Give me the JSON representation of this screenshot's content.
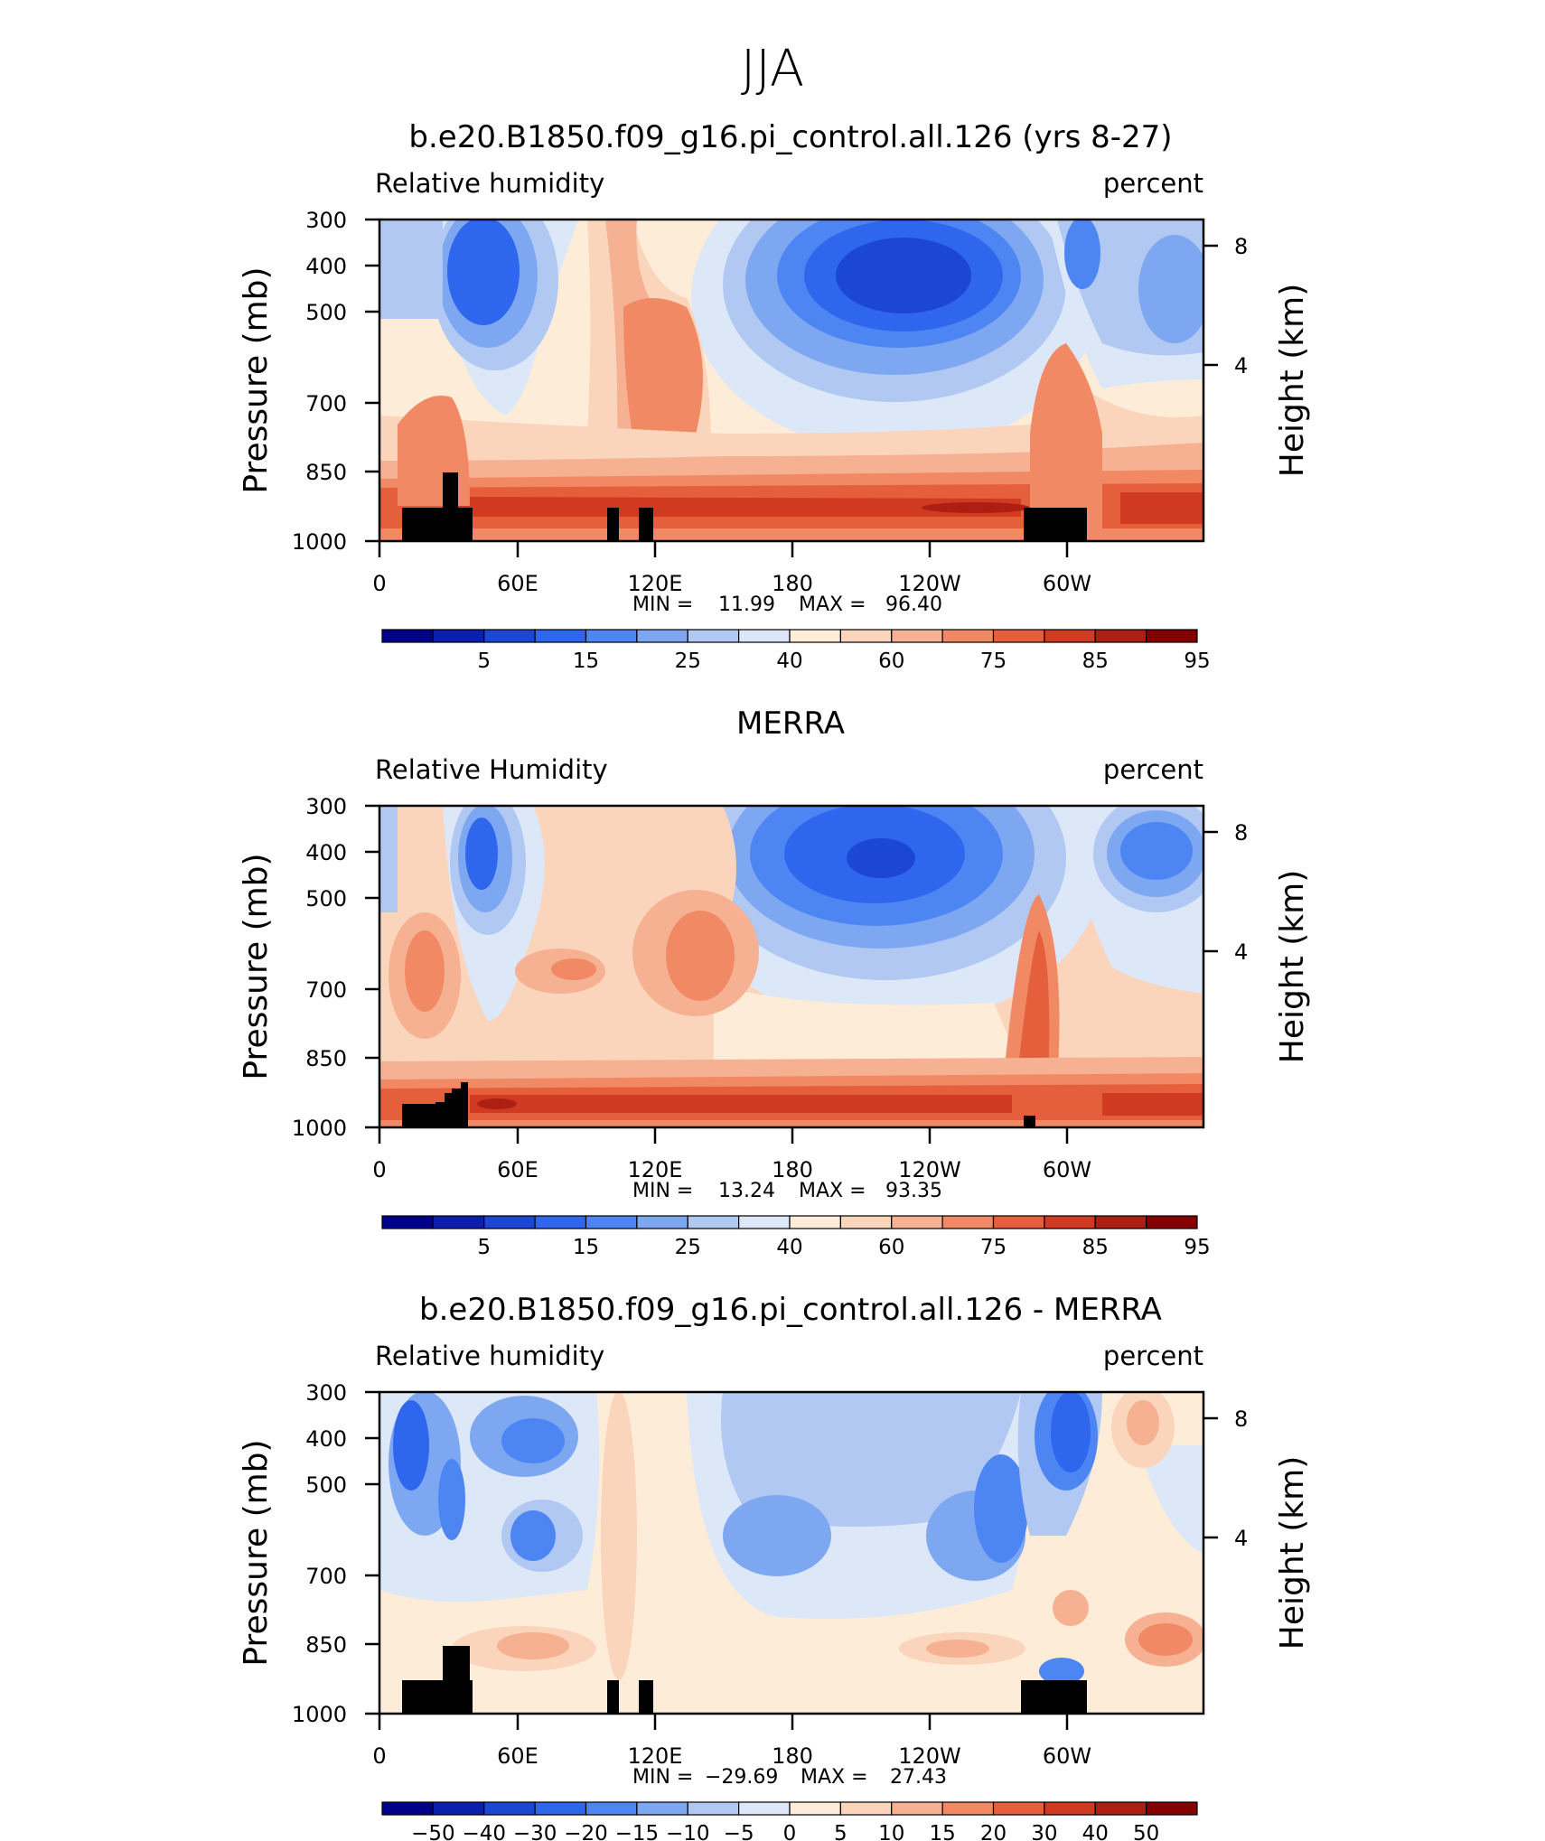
{
  "figure_title": "JJA",
  "colors": {
    "rh": [
      "#00008b",
      "#0a1fb0",
      "#1c47d4",
      "#2f66ee",
      "#4d86f2",
      "#7ea7f2",
      "#b0c8f2",
      "#dce7f7",
      "#fdecd8",
      "#fbd4bc",
      "#f6b092",
      "#f18964",
      "#e55f3d",
      "#cf3a20",
      "#ad1f12",
      "#850000"
    ],
    "diff": [
      "#00008b",
      "#0a1fb0",
      "#1c47d4",
      "#2f66ee",
      "#4d86f2",
      "#7ea7f2",
      "#b0c8f2",
      "#dce7f7",
      "#fdecd8",
      "#fbd4bc",
      "#f6b092",
      "#f18964",
      "#e55f3d",
      "#cf3a20",
      "#ad1f12",
      "#850000"
    ]
  },
  "chart_data": [
    {
      "type": "heatmap",
      "title": "b.e20.B1850.f09_g16.pi_control.all.126 (yrs 8-27)",
      "left_label": "Relative  humidity",
      "right_label": "percent",
      "ylabel": "Pressure  (mb)",
      "ylabel_right": "Height  (km)",
      "x_ticks": [
        "0",
        "60E",
        "120E",
        "180",
        "120W",
        "60W"
      ],
      "y_ticks": [
        "300",
        "400",
        "500",
        "700",
        "850",
        "1000"
      ],
      "y_right_ticks": [
        "8",
        "4"
      ],
      "stats": {
        "min_label": "MIN =",
        "min": "11.99",
        "max_label": "MAX =",
        "max": "96.40"
      },
      "colorbar_labels": [
        "5",
        "15",
        "25",
        "40",
        "60",
        "75",
        "85",
        "95"
      ],
      "xlim": [
        0,
        360
      ],
      "ylim": [
        1000,
        300
      ]
    },
    {
      "type": "heatmap",
      "title": "MERRA",
      "left_label": "Relative  Humidity",
      "right_label": "percent",
      "ylabel": "Pressure  (mb)",
      "ylabel_right": "Height  (km)",
      "x_ticks": [
        "0",
        "60E",
        "120E",
        "180",
        "120W",
        "60W"
      ],
      "y_ticks": [
        "300",
        "400",
        "500",
        "700",
        "850",
        "1000"
      ],
      "y_right_ticks": [
        "8",
        "4"
      ],
      "stats": {
        "min_label": "MIN =",
        "min": "13.24",
        "max_label": "MAX =",
        "max": "93.35"
      },
      "colorbar_labels": [
        "5",
        "15",
        "25",
        "40",
        "60",
        "75",
        "85",
        "95"
      ],
      "xlim": [
        0,
        360
      ],
      "ylim": [
        1000,
        300
      ]
    },
    {
      "type": "heatmap",
      "title": "b.e20.B1850.f09_g16.pi_control.all.126 - MERRA",
      "left_label": "Relative  humidity",
      "right_label": "percent",
      "ylabel": "Pressure  (mb)",
      "ylabel_right": "Height  (km)",
      "x_ticks": [
        "0",
        "60E",
        "120E",
        "180",
        "120W",
        "60W"
      ],
      "y_ticks": [
        "300",
        "400",
        "500",
        "700",
        "850",
        "1000"
      ],
      "y_right_ticks": [
        "8",
        "4"
      ],
      "stats": {
        "min_label": "MIN =",
        "min": "−29.69",
        "max_label": "MAX =",
        "max": "27.43"
      },
      "colorbar_labels": [
        "−50",
        "−40",
        "−30",
        "−20",
        "−15",
        "−10",
        "−5",
        "0",
        "5",
        "10",
        "15",
        "20",
        "30",
        "40",
        "50"
      ],
      "xlim": [
        0,
        360
      ],
      "ylim": [
        1000,
        300
      ]
    }
  ]
}
